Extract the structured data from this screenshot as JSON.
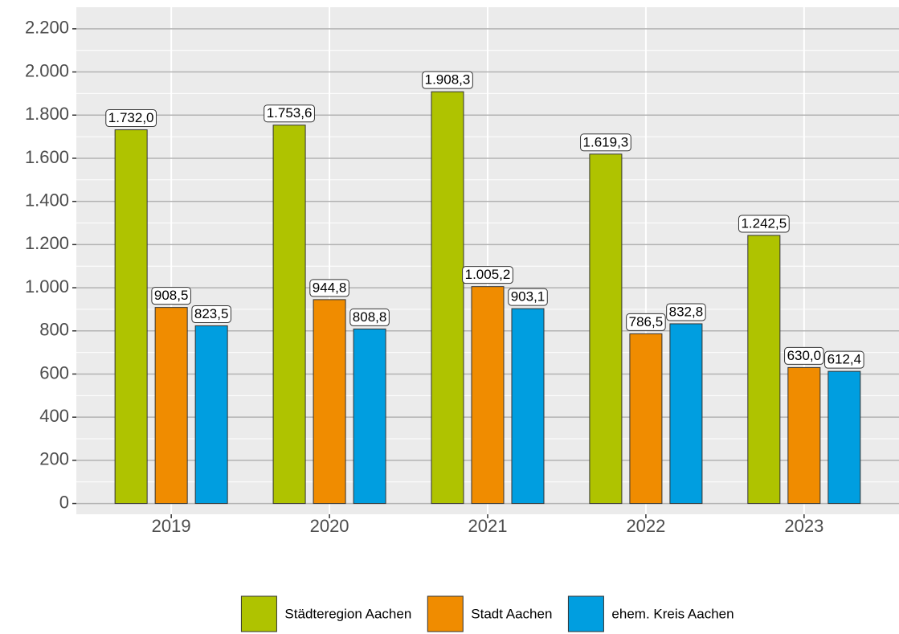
{
  "chart_data": {
    "type": "bar",
    "categories": [
      "2019",
      "2020",
      "2021",
      "2022",
      "2023"
    ],
    "series": [
      {
        "name": "Städteregion Aachen",
        "color": "#afc300",
        "values": [
          1732.0,
          1753.6,
          1908.3,
          1619.3,
          1242.5
        ],
        "value_labels": [
          "1.732,0",
          "1.753,6",
          "1.908,3",
          "1.619,3",
          "1.242,5"
        ]
      },
      {
        "name": "Stadt Aachen",
        "color": "#f08c00",
        "values": [
          908.5,
          944.8,
          1005.2,
          786.5,
          630.0
        ],
        "value_labels": [
          "908,5",
          "944,8",
          "1.005,2",
          "786,5",
          "630,0"
        ]
      },
      {
        "name": "ehem. Kreis Aachen",
        "color": "#009ee0",
        "values": [
          823.5,
          808.8,
          903.1,
          832.8,
          612.4
        ],
        "value_labels": [
          "823,5",
          "808,8",
          "903,1",
          "832,8",
          "612,4"
        ]
      }
    ],
    "ylim": [
      -50,
      2300
    ],
    "yticks": [
      0,
      200,
      400,
      600,
      800,
      {
        "value": 1000,
        "label": "1.000"
      },
      {
        "value": 1200,
        "label": "1.200"
      },
      {
        "value": 1400,
        "label": "1.400"
      },
      {
        "value": 1600,
        "label": "1.600"
      },
      {
        "value": 1800,
        "label": "1.800"
      },
      {
        "value": 2000,
        "label": "2.000"
      },
      {
        "value": 2200,
        "label": "2.200"
      }
    ],
    "grid": true,
    "legend": "bottom"
  }
}
